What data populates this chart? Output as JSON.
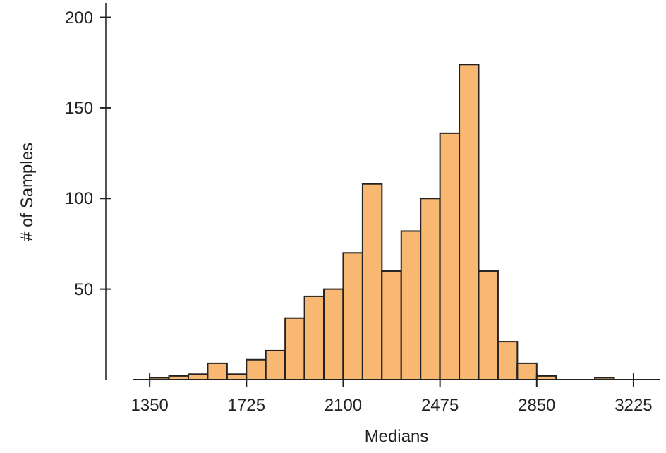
{
  "chart_data": {
    "type": "histogram",
    "xlabel": "Medians",
    "ylabel": "# of Samples",
    "bins": [
      1350,
      1425,
      1500,
      1575,
      1650,
      1725,
      1800,
      1875,
      1950,
      2025,
      2100,
      2175,
      2250,
      2325,
      2400,
      2475,
      2550,
      2625,
      2700,
      2775,
      2850,
      2925,
      3000,
      3075,
      3150
    ],
    "values": [
      1,
      2,
      3,
      9,
      3,
      11,
      16,
      34,
      46,
      50,
      70,
      108,
      60,
      82,
      100,
      136,
      174,
      60,
      21,
      9,
      2,
      0,
      0,
      1
    ],
    "color": "#f8b872",
    "xlim": [
      1284,
      3329
    ],
    "ylim": [
      0,
      208
    ],
    "xticks": [
      1350,
      1725,
      2100,
      2475,
      2850,
      3225
    ],
    "yticks": [
      50,
      100,
      150,
      200
    ],
    "grid": false
  }
}
